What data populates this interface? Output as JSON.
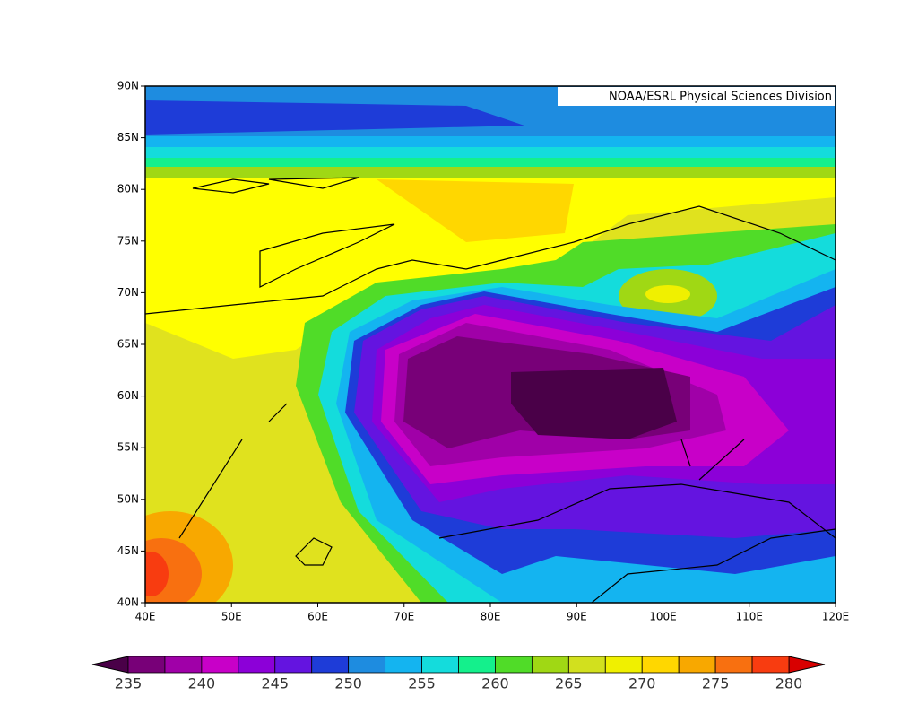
{
  "map": {
    "credit": "NOAA/ESRL Physical Sciences Division",
    "lat_ticks": [
      "90N",
      "85N",
      "80N",
      "75N",
      "70N",
      "65N",
      "60N",
      "55N",
      "50N",
      "45N",
      "40N"
    ],
    "lon_ticks": [
      "40E",
      "50E",
      "60E",
      "70E",
      "80E",
      "90E",
      "100E",
      "110E",
      "120E"
    ],
    "colorbar": {
      "ticks": [
        235,
        240,
        245,
        250,
        255,
        260,
        265,
        270,
        275,
        280
      ],
      "under_color": "#4a0048",
      "over_color": "#d80000",
      "colors": [
        "#780078",
        "#a000a8",
        "#c800c8",
        "#8c00d8",
        "#6414e0",
        "#1e3cd8",
        "#1e8ce0",
        "#14b4f0",
        "#14dcdc",
        "#14f08c",
        "#50dc28",
        "#a0d814",
        "#d2e01e",
        "#f0f000",
        "#ffd700",
        "#f8a800",
        "#f87010",
        "#f83c10"
      ]
    }
  }
}
